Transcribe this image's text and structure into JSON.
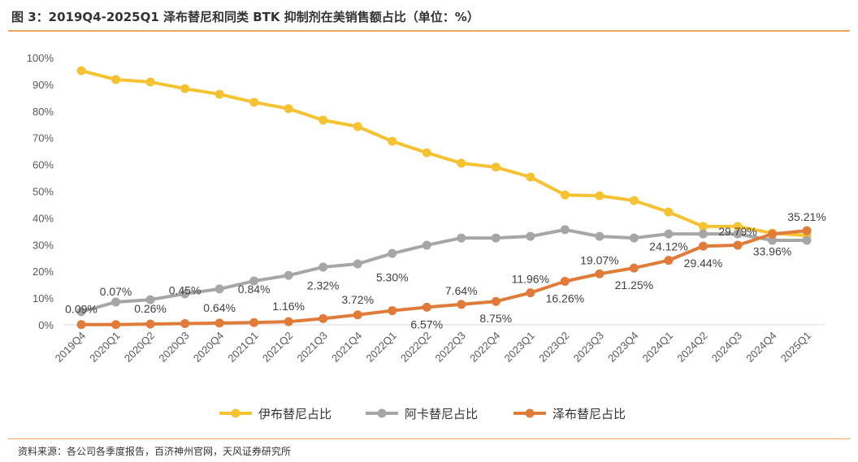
{
  "title": "图 3：2019Q4-2025Q1 泽布替尼和同类 BTK 抑制剂在美销售额占比（单位：%）",
  "source": "资料来源：各公司各季度报告，百济神州官网，天风证券研究所",
  "chart_data": {
    "type": "line",
    "title": "图 3：2019Q4-2025Q1 泽布替尼和同类 BTK 抑制剂在美销售额占比（单位：%）",
    "xlabel": "",
    "ylabel": "",
    "ylim": [
      0,
      100
    ],
    "yticks": [
      "0%",
      "10%",
      "20%",
      "30%",
      "40%",
      "50%",
      "60%",
      "70%",
      "80%",
      "90%",
      "100%"
    ],
    "grid": false,
    "legend": "bottom",
    "categories": [
      "2019Q4",
      "2020Q1",
      "2020Q2",
      "2020Q3",
      "2020Q4",
      "2021Q1",
      "2021Q2",
      "2021Q3",
      "2021Q4",
      "2022Q1",
      "2022Q2",
      "2022Q3",
      "2022Q4",
      "2023Q1",
      "2023Q2",
      "2023Q3",
      "2023Q4",
      "2024Q1",
      "2024Q2",
      "2024Q3",
      "2024Q4",
      "2025Q1"
    ],
    "series": [
      {
        "name": "伊布替尼占比",
        "color": "#f5c232",
        "values": [
          95.1,
          91.8,
          90.9,
          88.4,
          86.3,
          83.3,
          80.9,
          76.6,
          74.2,
          68.7,
          64.4,
          60.5,
          59.0,
          55.3,
          48.6,
          48.3,
          46.5,
          42.2,
          36.8,
          36.8,
          34.3,
          33.4
        ]
      },
      {
        "name": "阿卡替尼占比",
        "color": "#a6a6a6",
        "values": [
          4.9,
          8.5,
          9.4,
          11.6,
          13.4,
          16.4,
          18.5,
          21.6,
          22.8,
          26.7,
          29.8,
          32.5,
          32.5,
          33.1,
          35.6,
          33.1,
          32.5,
          34.0,
          34.0,
          34.0,
          31.6,
          31.6
        ]
      },
      {
        "name": "泽布替尼占比",
        "color": "#e07b39",
        "values": [
          0.09,
          0.07,
          0.26,
          0.45,
          0.64,
          0.84,
          1.16,
          2.32,
          3.72,
          5.3,
          6.57,
          7.64,
          8.75,
          11.96,
          16.26,
          19.07,
          21.25,
          24.12,
          29.44,
          29.79,
          33.96,
          35.21
        ],
        "labels": [
          "0.09%",
          "0.07%",
          "0.26%",
          "0.45%",
          "0.64%",
          "0.84%",
          "1.16%",
          "2.32%",
          "3.72%",
          "5.30%",
          "6.57%",
          "7.64%",
          "8.75%",
          "11.96%",
          "16.26%",
          "19.07%",
          "21.25%",
          "24.12%",
          "29.44%",
          "29.79%",
          "33.96%",
          "35.21%"
        ]
      }
    ]
  }
}
